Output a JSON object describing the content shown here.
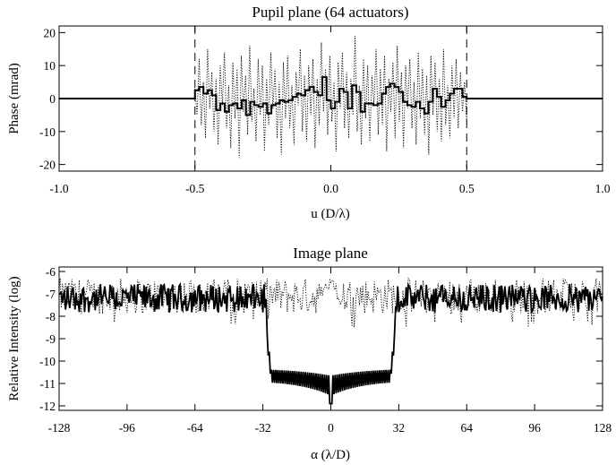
{
  "chart_data": [
    {
      "type": "line",
      "title": "Pupil plane (64 actuators)",
      "xlabel": "u (D/λ)",
      "ylabel": "Phase (mrad)",
      "xlim": [
        -1.0,
        1.0
      ],
      "ylim": [
        -22,
        22
      ],
      "xticks": [
        -1.0,
        -0.5,
        0.0,
        0.5,
        1.0
      ],
      "xtick_labels": [
        "-1.0",
        "-0.5",
        "0.0",
        "0.5",
        "1.0"
      ],
      "yticks": [
        -20,
        -10,
        0,
        10,
        20
      ],
      "ytick_labels": [
        "-20",
        "-10",
        "0",
        "10",
        "20"
      ],
      "pupil_edges": [
        -0.5,
        0.5
      ],
      "grid": false,
      "series": [
        {
          "style": "solid-step",
          "actuator_width": 0.015625,
          "x_start": -0.5,
          "values": [
            2.5,
            3.5,
            1.5,
            2.5,
            1.0,
            -3.5,
            -1.5,
            -4.0,
            -2.0,
            -1.5,
            -3.0,
            -0.5,
            -5.0,
            -1.0,
            -2.0,
            -2.5,
            -1.5,
            -4.5,
            -2.0,
            -1.5,
            -0.5,
            -1.0,
            -0.5,
            0.5,
            1.5,
            1.0,
            2.5,
            3.5,
            2.0,
            1.0,
            6.5,
            -0.5,
            -3.0,
            -1.0,
            3.0,
            2.0,
            -3.0,
            4.0,
            2.0,
            -4.0,
            -1.5,
            -1.5,
            -2.0,
            -1.5,
            1.5,
            3.5,
            4.5,
            3.5,
            2.0,
            -1.0,
            -2.0,
            -2.5,
            -1.0,
            -3.0,
            -4.5,
            -1.0,
            3.0,
            0.5,
            -2.5,
            -0.5,
            1.5,
            3.0,
            3.0,
            0.5
          ],
          "outside_value": 0
        },
        {
          "style": "dotted",
          "x_start": -0.5,
          "x_end": 0.5,
          "values": [
            3,
            -5,
            12,
            -8,
            5,
            -12,
            15,
            -3,
            8,
            -10,
            6,
            -14,
            10,
            -2,
            14,
            -9,
            4,
            -15,
            11,
            -6,
            9,
            -18,
            13,
            -4,
            7,
            -11,
            16,
            -7,
            3,
            -13,
            12,
            -5,
            10,
            -16,
            6,
            -8,
            14,
            -3,
            9,
            -12,
            5,
            -17,
            11,
            -6,
            13,
            -9,
            4,
            -14,
            8,
            -2,
            15,
            -10,
            7,
            -13,
            10,
            -5,
            12,
            -15,
            6,
            -8,
            17,
            -4,
            9,
            -11,
            13,
            -7,
            5,
            -16,
            11,
            -3,
            14,
            -9,
            8,
            -12,
            6,
            -5,
            19,
            -10,
            4,
            -14,
            12,
            -6,
            10,
            -13,
            7,
            -2,
            15,
            -11,
            9,
            -8,
            13,
            -16,
            6,
            -4,
            11,
            -12,
            16,
            -7,
            8,
            -15,
            10,
            -3,
            12,
            -9,
            5,
            -14,
            14,
            -6,
            9,
            -11,
            7,
            -17,
            13,
            -5,
            11,
            -10,
            6,
            -13,
            15,
            -8,
            4,
            -12,
            10,
            -6,
            12,
            -9,
            8,
            -4,
            5,
            -7
          ],
          "outside_value": 0
        }
      ]
    },
    {
      "type": "line",
      "title": "Image plane",
      "xlabel": "α (λ/D)",
      "ylabel": "Relative Intensity (log)",
      "xlim": [
        -128,
        128
      ],
      "ylim": [
        -12.2,
        -5.8
      ],
      "xticks": [
        -128,
        -96,
        -64,
        -32,
        0,
        32,
        64,
        96,
        128
      ],
      "xtick_labels": [
        "-128",
        "-96",
        "-64",
        "-32",
        "0",
        "32",
        "64",
        "96",
        "128"
      ],
      "yticks": [
        -12,
        -11,
        -10,
        -9,
        -8,
        -7,
        -6
      ],
      "ytick_labels": [
        "-12",
        "-11",
        "-10",
        "-9",
        "-8",
        "-7",
        "-6"
      ],
      "grid": false,
      "series": [
        {
          "style": "solid",
          "description_dark_hole": [
            -32,
            32
          ],
          "halo_level_mean": -7.2,
          "halo_level_spread": 0.8,
          "hole_floor": -10.3,
          "hole_modulation_depth": 0.9,
          "hole_center_min": -11.9
        },
        {
          "style": "dotted",
          "halo_level_mean": -7.1,
          "halo_level_spread": 1.0,
          "dips_to": -8.5,
          "center_max": -6.1
        }
      ]
    }
  ]
}
